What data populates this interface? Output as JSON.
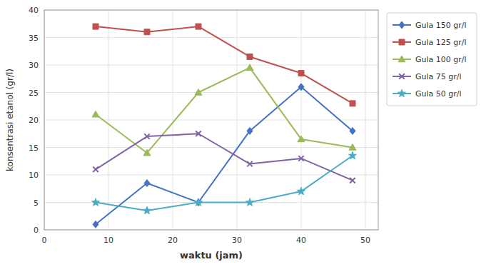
{
  "chart_data": {
    "type": "line",
    "x": [
      8,
      16,
      24,
      32,
      40,
      48
    ],
    "series": [
      {
        "name": "Gula 150 gr/l",
        "color": "#4472c4",
        "marker": "diamond",
        "values": [
          1,
          8.5,
          5,
          18,
          26,
          18
        ]
      },
      {
        "name": "Gula 125 gr/l",
        "color": "#c0504d",
        "marker": "square",
        "values": [
          37,
          36,
          37,
          31.5,
          28.5,
          23
        ]
      },
      {
        "name": "Gula 100 gr/l",
        "color": "#9bbb59",
        "marker": "triangle",
        "values": [
          21,
          14,
          25,
          29.5,
          16.5,
          15
        ]
      },
      {
        "name": "Gula 75 gr/l",
        "color": "#8064a2",
        "marker": "x",
        "values": [
          11,
          17,
          17.5,
          12,
          13,
          9
        ]
      },
      {
        "name": "Gula 50 gr/l",
        "color": "#4bacc6",
        "marker": "star",
        "values": [
          5,
          3.5,
          5,
          5,
          7,
          13.5
        ]
      }
    ],
    "xlabel": "waktu (jam)",
    "ylabel": "konsentrasi etanol (gr/l)",
    "xlim": [
      0,
      52
    ],
    "ylim": [
      0,
      40
    ],
    "xticks": [
      0,
      10,
      20,
      30,
      40,
      50
    ],
    "yticks": [
      0,
      5,
      10,
      15,
      20,
      25,
      30,
      35,
      40
    ],
    "grid": true,
    "legend": "right"
  }
}
